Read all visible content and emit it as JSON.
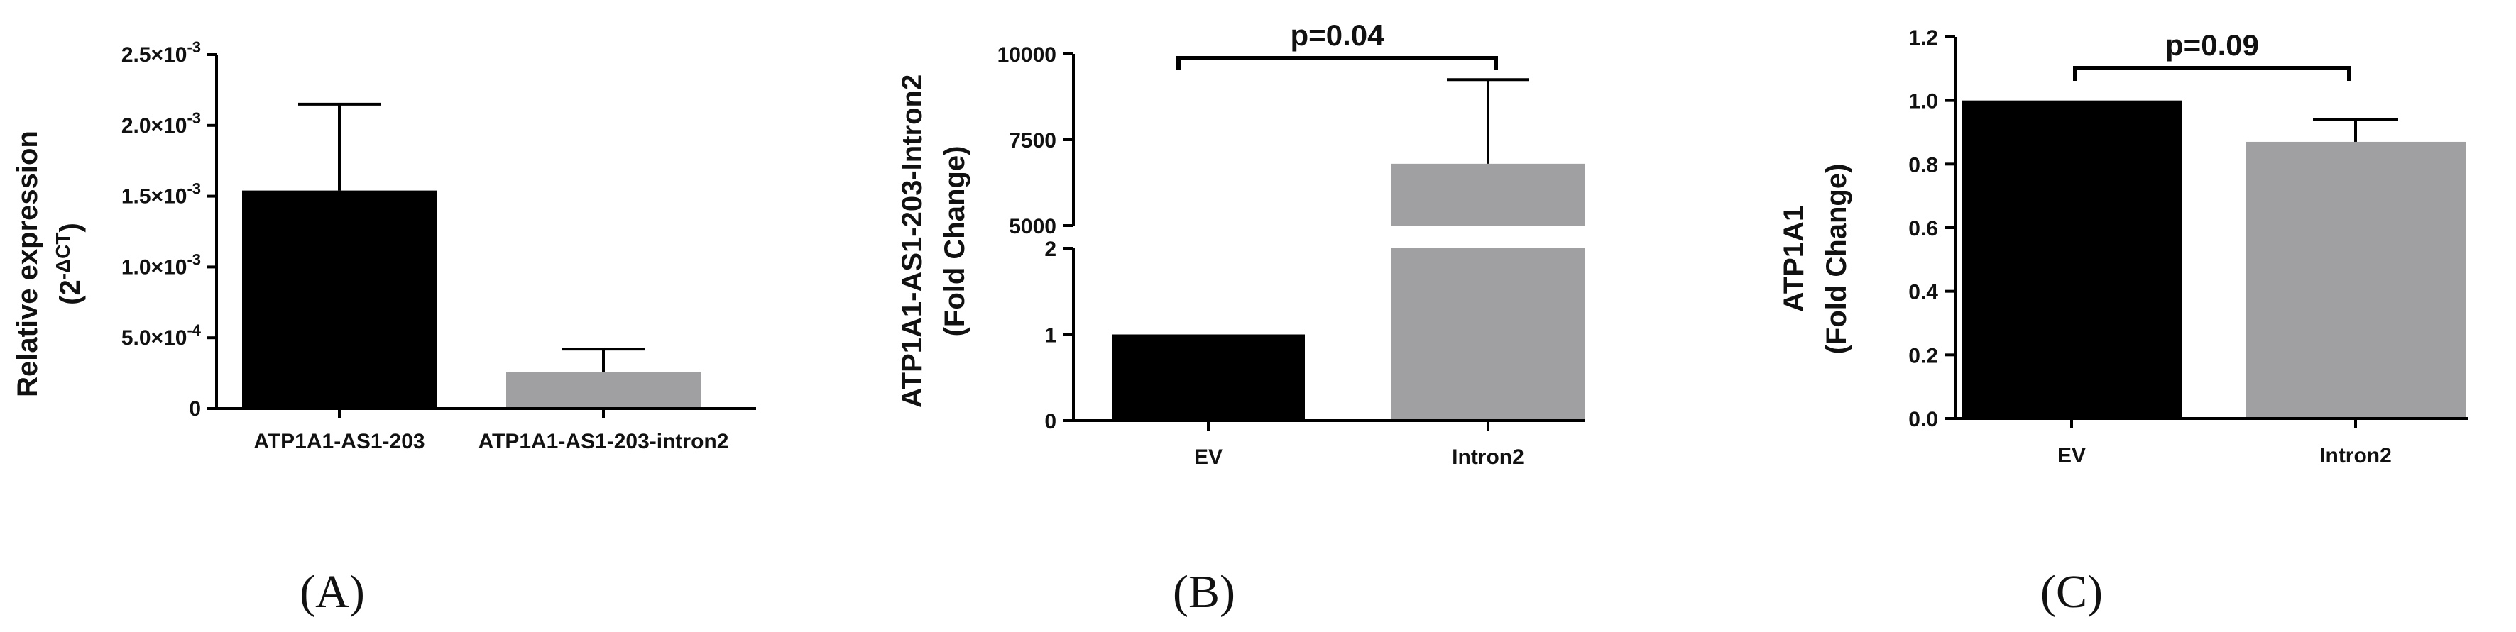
{
  "chart_data": [
    {
      "panel": "(A)",
      "type": "bar",
      "categories": [
        "ATP1A1-AS1-203",
        "ATP1A1-AS1-203-intron2"
      ],
      "values": [
        0.00154,
        0.00026
      ],
      "errors": [
        0.00061,
        0.00016
      ],
      "colors": [
        "#000000",
        "#a0a0a2"
      ],
      "ylabel": "Relative expression",
      "ylabel2": "(2",
      "ylabel2_sup": "-ΔCT",
      "ylabel2_end": ")",
      "ylim": [
        0,
        0.0025
      ],
      "yticks": [
        0,
        0.0005,
        0.001,
        0.0015,
        0.002,
        0.0025
      ],
      "ytick_labels": [
        {
          "base": "0",
          "exp": ""
        },
        {
          "base": "5.0×10",
          "exp": "-4"
        },
        {
          "base": "1.0×10",
          "exp": "-3"
        },
        {
          "base": "1.5×10",
          "exp": "-3"
        },
        {
          "base": "2.0×10",
          "exp": "-3"
        },
        {
          "base": "2.5×10",
          "exp": "-3"
        }
      ]
    },
    {
      "panel": "(B)",
      "type": "bar",
      "broken_axis": true,
      "categories": [
        "EV",
        "Intron2"
      ],
      "values": [
        1,
        6800
      ],
      "errors": [
        0,
        2450
      ],
      "colors": [
        "#000000",
        "#a0a0a2"
      ],
      "ylabel": "ATP1A1-AS1-203-Intron2",
      "ylabel2": "(Fold Change)",
      "ylim_lower": [
        0,
        2
      ],
      "ylim_upper": [
        5000,
        10000
      ],
      "yticks_lower": [
        "0",
        "1",
        "2"
      ],
      "yticks_upper": [
        "5000",
        "7500",
        "10000"
      ],
      "significance": "p=0.04"
    },
    {
      "panel": "(C)",
      "type": "bar",
      "categories": [
        "EV",
        "Intron2"
      ],
      "values": [
        1.0,
        0.87
      ],
      "errors": [
        0,
        0.07
      ],
      "colors": [
        "#000000",
        "#a0a0a2"
      ],
      "ylabel": "ATP1A1",
      "ylabel2": "(Fold Change)",
      "ylim": [
        0,
        1.2
      ],
      "yticks": [
        "0.0",
        "0.2",
        "0.4",
        "0.6",
        "0.8",
        "1.0",
        "1.2"
      ],
      "significance": "p=0.09"
    }
  ]
}
